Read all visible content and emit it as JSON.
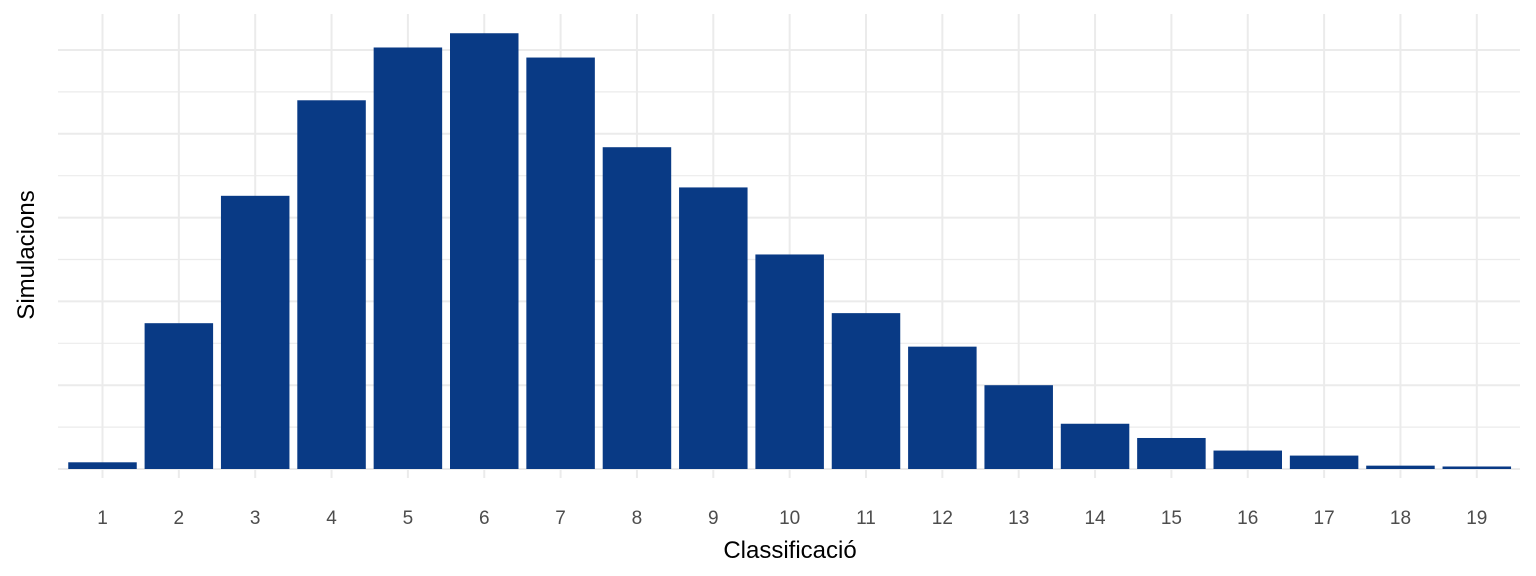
{
  "chart_data": {
    "type": "bar",
    "xlabel": "Classificació",
    "ylabel": "Simulacions",
    "categories": [
      "1",
      "2",
      "3",
      "4",
      "5",
      "6",
      "7",
      "8",
      "9",
      "10",
      "11",
      "12",
      "13",
      "14",
      "15",
      "16",
      "17",
      "18",
      "19"
    ],
    "values": [
      0.8,
      17.4,
      32.6,
      44.0,
      50.3,
      52.0,
      49.1,
      38.4,
      33.6,
      25.6,
      18.6,
      14.6,
      10.0,
      5.4,
      3.7,
      2.2,
      1.6,
      0.4,
      0.3
    ],
    "ylim": [
      0,
      55
    ],
    "y_ticks_labeled": false,
    "grid": true,
    "legend": "none",
    "bar_color": "#093A85",
    "grid_color": "#EBEBEB"
  }
}
